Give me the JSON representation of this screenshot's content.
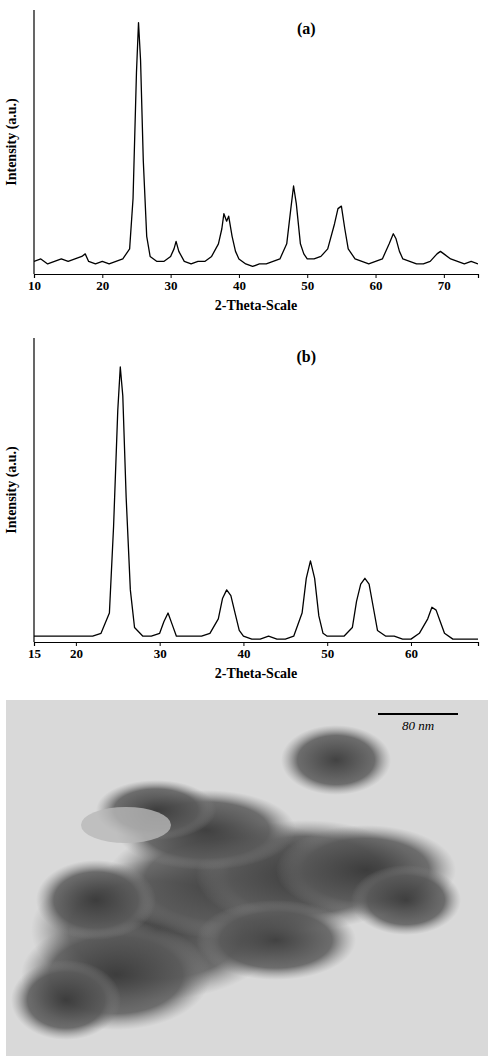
{
  "chart_data": [
    {
      "type": "line",
      "title": "(a)",
      "x_label": "2-Theta-Scale",
      "y_label": "Intensity (a.u.)",
      "x": [
        10,
        11,
        12,
        13,
        14,
        15,
        16,
        17,
        17.5,
        18,
        19,
        20,
        21,
        22,
        23,
        24,
        24.5,
        25,
        25.3,
        25.6,
        26,
        26.5,
        27,
        28,
        29,
        30,
        30.5,
        30.8,
        31.2,
        32,
        33,
        34,
        35,
        36,
        37,
        37.5,
        37.8,
        38.2,
        38.5,
        39,
        39.5,
        40,
        41,
        42,
        43,
        44,
        45,
        46,
        47,
        47.6,
        48,
        48.4,
        49,
        49.5,
        50,
        51,
        52,
        53,
        54,
        54.5,
        55,
        55.5,
        56,
        57,
        58,
        59,
        60,
        61,
        62,
        62.6,
        63,
        63.5,
        64,
        65,
        66,
        67,
        68,
        69,
        69.5,
        70,
        71,
        72,
        73,
        74,
        75
      ],
      "values": [
        5,
        6,
        4,
        5,
        6,
        5,
        6,
        7,
        8,
        5,
        4,
        5,
        4,
        5,
        6,
        10,
        30,
        80,
        100,
        85,
        45,
        15,
        7,
        5,
        5,
        7,
        10,
        13,
        9,
        5,
        4,
        5,
        5,
        7,
        12,
        18,
        24,
        21,
        23,
        15,
        9,
        6,
        4,
        3,
        4,
        4,
        5,
        6,
        12,
        26,
        35,
        28,
        12,
        8,
        6,
        6,
        7,
        10,
        20,
        26,
        27,
        18,
        10,
        6,
        5,
        4,
        5,
        6,
        12,
        16,
        14,
        9,
        6,
        5,
        4,
        4,
        5,
        8,
        9,
        8,
        6,
        5,
        4,
        5,
        4
      ],
      "color": "#000000",
      "xlim": [
        10,
        75
      ],
      "ylim": [
        0,
        105
      ],
      "xticks": [
        10,
        20,
        30,
        40,
        50,
        60,
        70
      ],
      "tick_labels": "x"
    },
    {
      "type": "line",
      "title": "(b)",
      "x_label": "2-Theta-Scale",
      "y_label": "Intensity (a.u.)",
      "x": [
        15,
        16,
        17,
        18,
        19,
        20,
        21,
        22,
        23,
        24,
        24.5,
        25,
        25.3,
        25.6,
        26,
        26.5,
        27,
        28,
        29,
        30,
        30.5,
        31,
        31.5,
        32,
        33,
        34,
        35,
        36,
        37,
        37.5,
        38,
        38.5,
        39,
        39.5,
        40,
        41,
        42,
        43,
        44,
        45,
        46,
        47,
        47.5,
        48,
        48.5,
        49,
        49.5,
        50,
        51,
        52,
        53,
        53.5,
        54,
        54.5,
        55,
        55.5,
        56,
        57,
        58,
        59,
        60,
        61,
        62,
        62.5,
        63,
        63.5,
        64,
        65,
        66,
        67,
        68
      ],
      "values": [
        2,
        2,
        2,
        2,
        2,
        2,
        2,
        2,
        3,
        10,
        40,
        80,
        95,
        85,
        50,
        18,
        5,
        2,
        2,
        3,
        7,
        10,
        6,
        2,
        2,
        2,
        2,
        3,
        8,
        15,
        18,
        16,
        10,
        4,
        2,
        1,
        1,
        2,
        1,
        1,
        2,
        10,
        22,
        28,
        22,
        9,
        3,
        2,
        2,
        2,
        5,
        14,
        20,
        22,
        20,
        12,
        4,
        2,
        2,
        1,
        1,
        3,
        8,
        12,
        11,
        7,
        3,
        1,
        1,
        1,
        1
      ],
      "color": "#000000",
      "xlim": [
        15,
        68
      ],
      "ylim": [
        0,
        105
      ],
      "xticks": [
        15,
        20,
        30,
        40,
        50,
        60
      ],
      "tick_labels": "x"
    }
  ],
  "image": {
    "scale_bar_label": "80 nm"
  }
}
